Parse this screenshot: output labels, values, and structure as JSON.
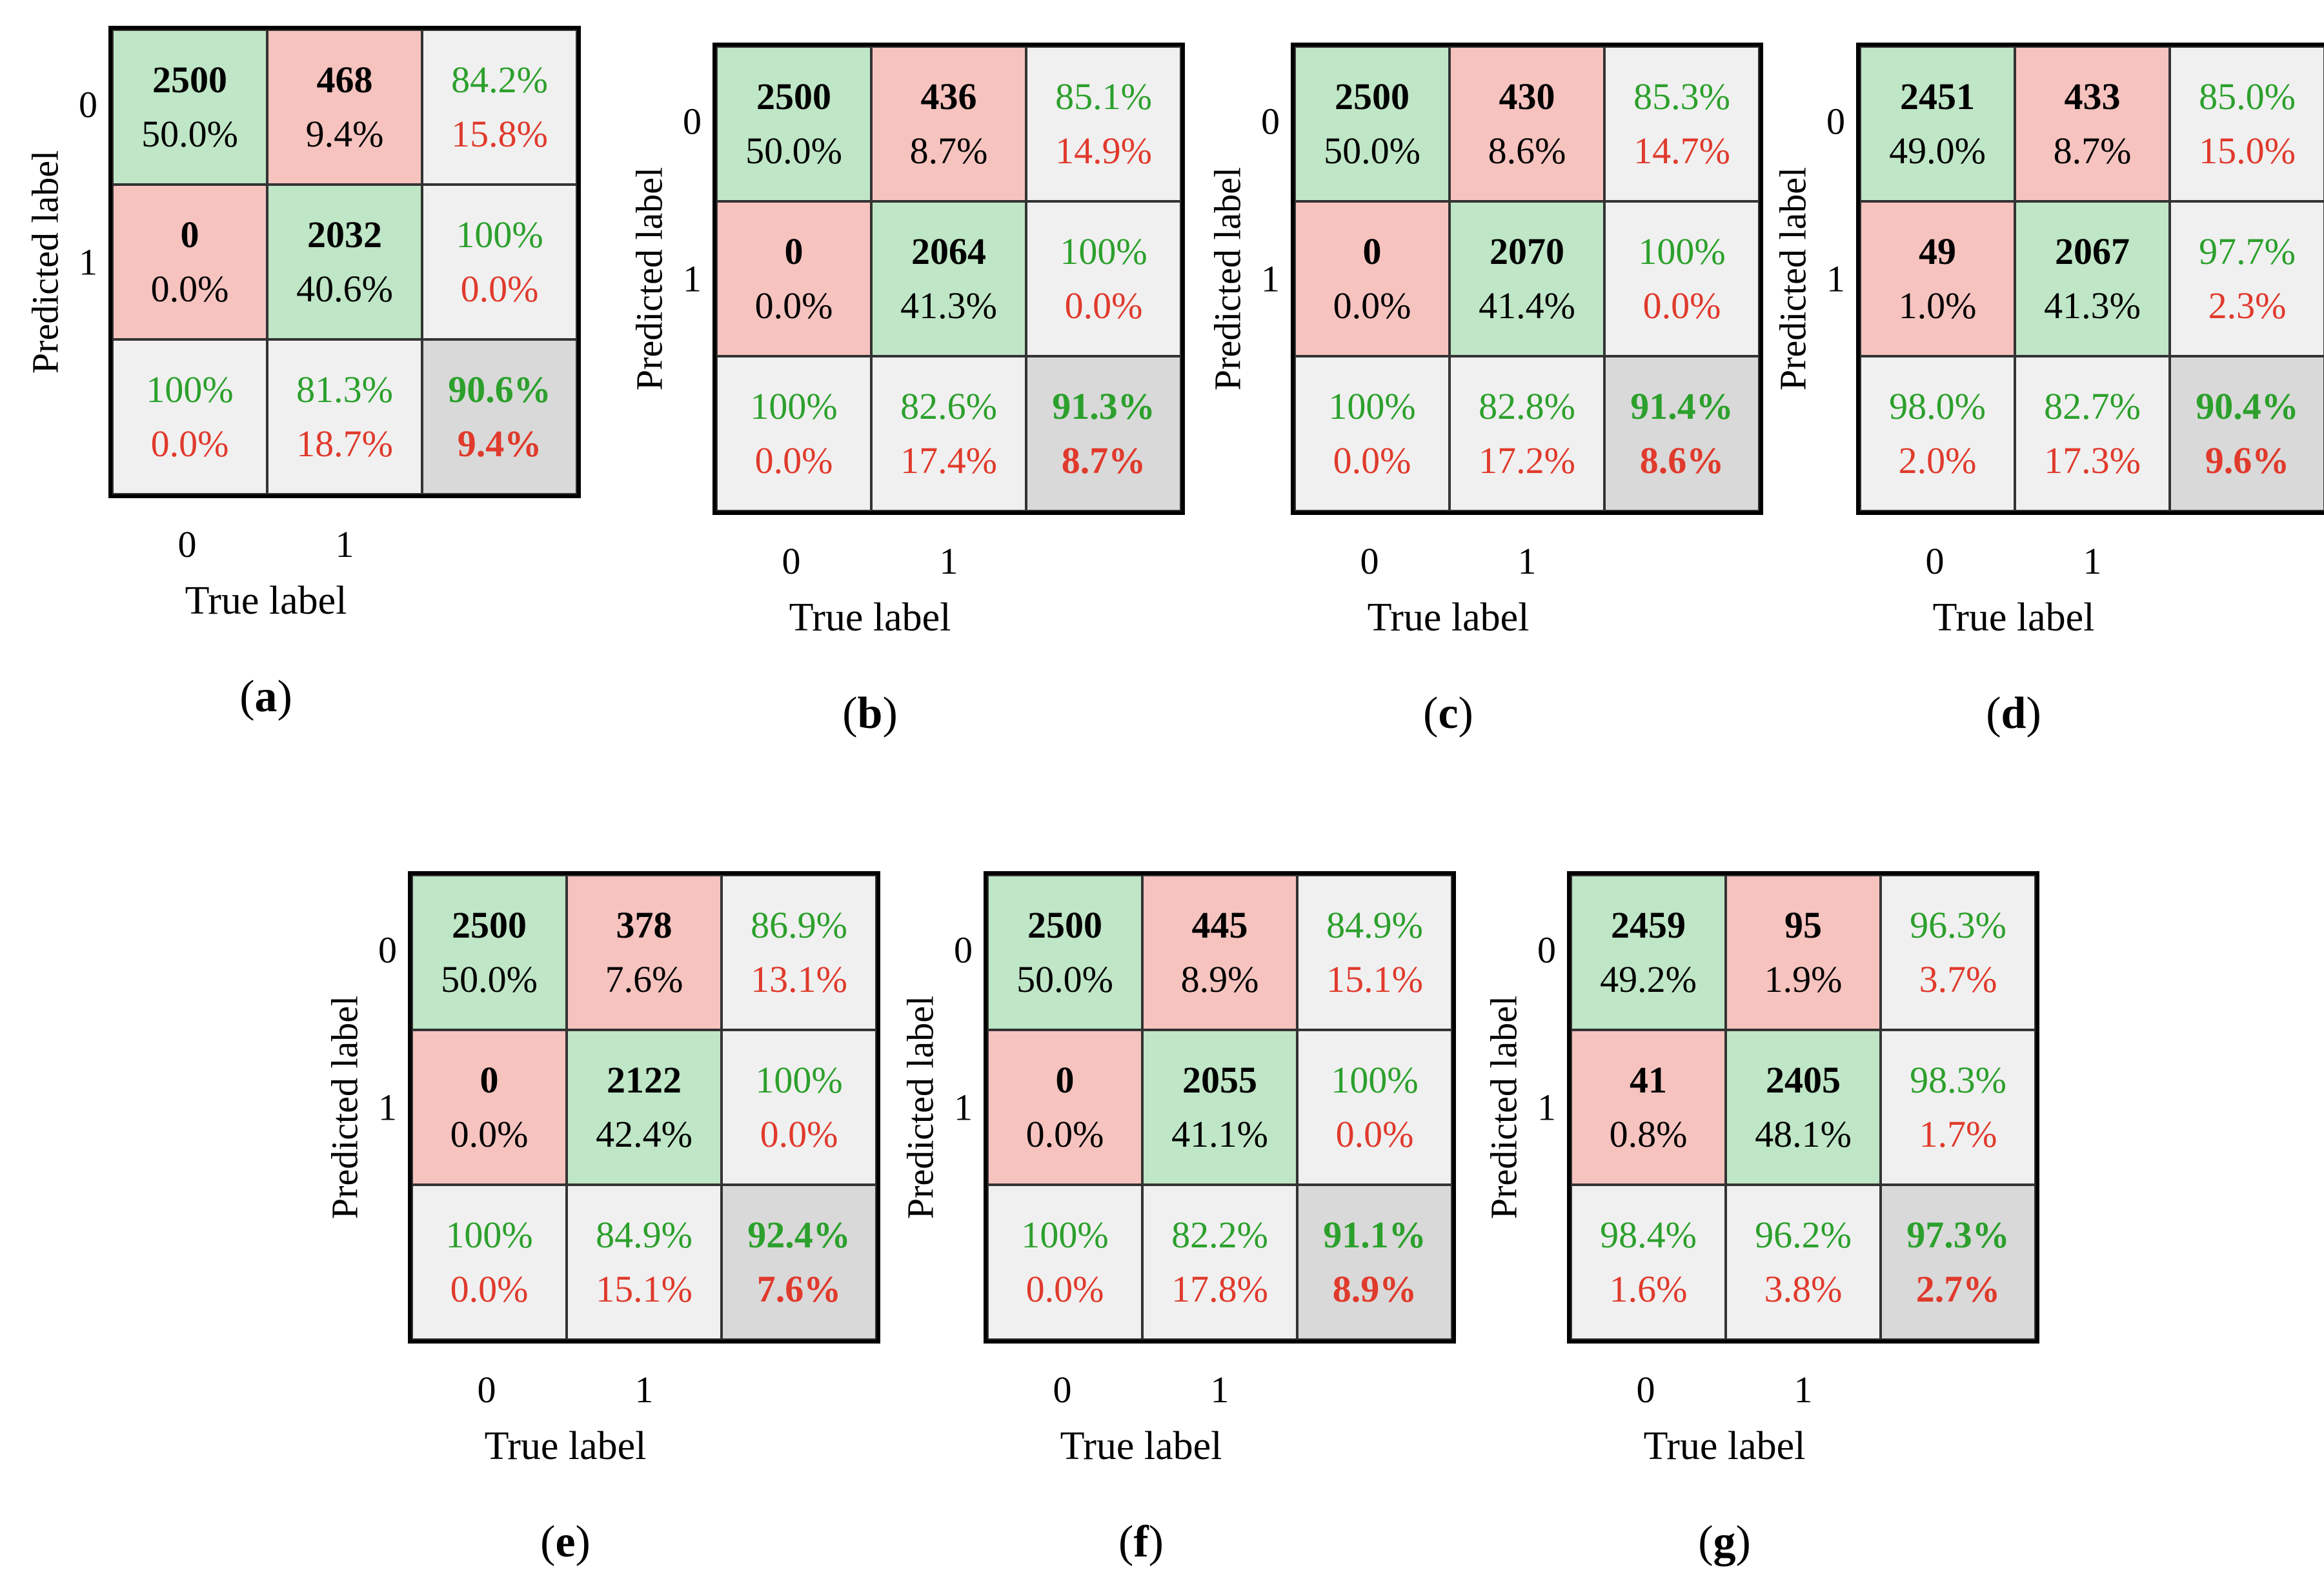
{
  "chart_data": [
    {
      "type": "heatmap",
      "caption": "a",
      "xlabel": "True label",
      "ylabel": "Predicted label",
      "xticks": [
        "0",
        "1"
      ],
      "yticks": [
        "0",
        "1"
      ],
      "cells": [
        [
          {
            "n": "2500",
            "p": "50.0%"
          },
          {
            "n": "468",
            "p": "9.4%"
          }
        ],
        [
          {
            "n": "0",
            "p": "0.0%"
          },
          {
            "n": "2032",
            "p": "40.6%"
          }
        ]
      ],
      "row_summary": [
        [
          "84.2%",
          "15.8%"
        ],
        [
          "100%",
          "0.0%"
        ]
      ],
      "col_summary": [
        [
          "100%",
          "0.0%"
        ],
        [
          "81.3%",
          "18.7%"
        ]
      ],
      "overall": [
        "90.6%",
        "9.4%"
      ]
    },
    {
      "type": "heatmap",
      "caption": "b",
      "xlabel": "True label",
      "ylabel": "Predicted label",
      "xticks": [
        "0",
        "1"
      ],
      "yticks": [
        "0",
        "1"
      ],
      "cells": [
        [
          {
            "n": "2500",
            "p": "50.0%"
          },
          {
            "n": "436",
            "p": "8.7%"
          }
        ],
        [
          {
            "n": "0",
            "p": "0.0%"
          },
          {
            "n": "2064",
            "p": "41.3%"
          }
        ]
      ],
      "row_summary": [
        [
          "85.1%",
          "14.9%"
        ],
        [
          "100%",
          "0.0%"
        ]
      ],
      "col_summary": [
        [
          "100%",
          "0.0%"
        ],
        [
          "82.6%",
          "17.4%"
        ]
      ],
      "overall": [
        "91.3%",
        "8.7%"
      ]
    },
    {
      "type": "heatmap",
      "caption": "c",
      "xlabel": "True label",
      "ylabel": "Predicted label",
      "xticks": [
        "0",
        "1"
      ],
      "yticks": [
        "0",
        "1"
      ],
      "cells": [
        [
          {
            "n": "2500",
            "p": "50.0%"
          },
          {
            "n": "430",
            "p": "8.6%"
          }
        ],
        [
          {
            "n": "0",
            "p": "0.0%"
          },
          {
            "n": "2070",
            "p": "41.4%"
          }
        ]
      ],
      "row_summary": [
        [
          "85.3%",
          "14.7%"
        ],
        [
          "100%",
          "0.0%"
        ]
      ],
      "col_summary": [
        [
          "100%",
          "0.0%"
        ],
        [
          "82.8%",
          "17.2%"
        ]
      ],
      "overall": [
        "91.4%",
        "8.6%"
      ]
    },
    {
      "type": "heatmap",
      "caption": "d",
      "xlabel": "True label",
      "ylabel": "Predicted label",
      "xticks": [
        "0",
        "1"
      ],
      "yticks": [
        "0",
        "1"
      ],
      "cells": [
        [
          {
            "n": "2451",
            "p": "49.0%"
          },
          {
            "n": "433",
            "p": "8.7%"
          }
        ],
        [
          {
            "n": "49",
            "p": "1.0%"
          },
          {
            "n": "2067",
            "p": "41.3%"
          }
        ]
      ],
      "row_summary": [
        [
          "85.0%",
          "15.0%"
        ],
        [
          "97.7%",
          "2.3%"
        ]
      ],
      "col_summary": [
        [
          "98.0%",
          "2.0%"
        ],
        [
          "82.7%",
          "17.3%"
        ]
      ],
      "overall": [
        "90.4%",
        "9.6%"
      ]
    },
    {
      "type": "heatmap",
      "caption": "e",
      "xlabel": "True label",
      "ylabel": "Predicted label",
      "xticks": [
        "0",
        "1"
      ],
      "yticks": [
        "0",
        "1"
      ],
      "cells": [
        [
          {
            "n": "2500",
            "p": "50.0%"
          },
          {
            "n": "378",
            "p": "7.6%"
          }
        ],
        [
          {
            "n": "0",
            "p": "0.0%"
          },
          {
            "n": "2122",
            "p": "42.4%"
          }
        ]
      ],
      "row_summary": [
        [
          "86.9%",
          "13.1%"
        ],
        [
          "100%",
          "0.0%"
        ]
      ],
      "col_summary": [
        [
          "100%",
          "0.0%"
        ],
        [
          "84.9%",
          "15.1%"
        ]
      ],
      "overall": [
        "92.4%",
        "7.6%"
      ]
    },
    {
      "type": "heatmap",
      "caption": "f",
      "xlabel": "True label",
      "ylabel": "Predicted label",
      "xticks": [
        "0",
        "1"
      ],
      "yticks": [
        "0",
        "1"
      ],
      "cells": [
        [
          {
            "n": "2500",
            "p": "50.0%"
          },
          {
            "n": "445",
            "p": "8.9%"
          }
        ],
        [
          {
            "n": "0",
            "p": "0.0%"
          },
          {
            "n": "2055",
            "p": "41.1%"
          }
        ]
      ],
      "row_summary": [
        [
          "84.9%",
          "15.1%"
        ],
        [
          "100%",
          "0.0%"
        ]
      ],
      "col_summary": [
        [
          "100%",
          "0.0%"
        ],
        [
          "82.2%",
          "17.8%"
        ]
      ],
      "overall": [
        "91.1%",
        "8.9%"
      ]
    },
    {
      "type": "heatmap",
      "caption": "g",
      "xlabel": "True label",
      "ylabel": "Predicted label",
      "xticks": [
        "0",
        "1"
      ],
      "yticks": [
        "0",
        "1"
      ],
      "cells": [
        [
          {
            "n": "2459",
            "p": "49.2%"
          },
          {
            "n": "95",
            "p": "1.9%"
          }
        ],
        [
          {
            "n": "41",
            "p": "0.8%"
          },
          {
            "n": "2405",
            "p": "48.1%"
          }
        ]
      ],
      "row_summary": [
        [
          "96.3%",
          "3.7%"
        ],
        [
          "98.3%",
          "1.7%"
        ]
      ],
      "col_summary": [
        [
          "98.4%",
          "1.6%"
        ],
        [
          "96.2%",
          "3.8%"
        ]
      ],
      "overall": [
        "97.3%",
        "2.7%"
      ]
    }
  ],
  "colors": {
    "correct_bg": "#bfe6c6",
    "wrong_bg": "#f6c3bf",
    "summary_bg": "#f0f0f0",
    "total_bg": "#d9d9d9",
    "green_text": "#2ca02c",
    "red_text": "#e03a2c"
  }
}
